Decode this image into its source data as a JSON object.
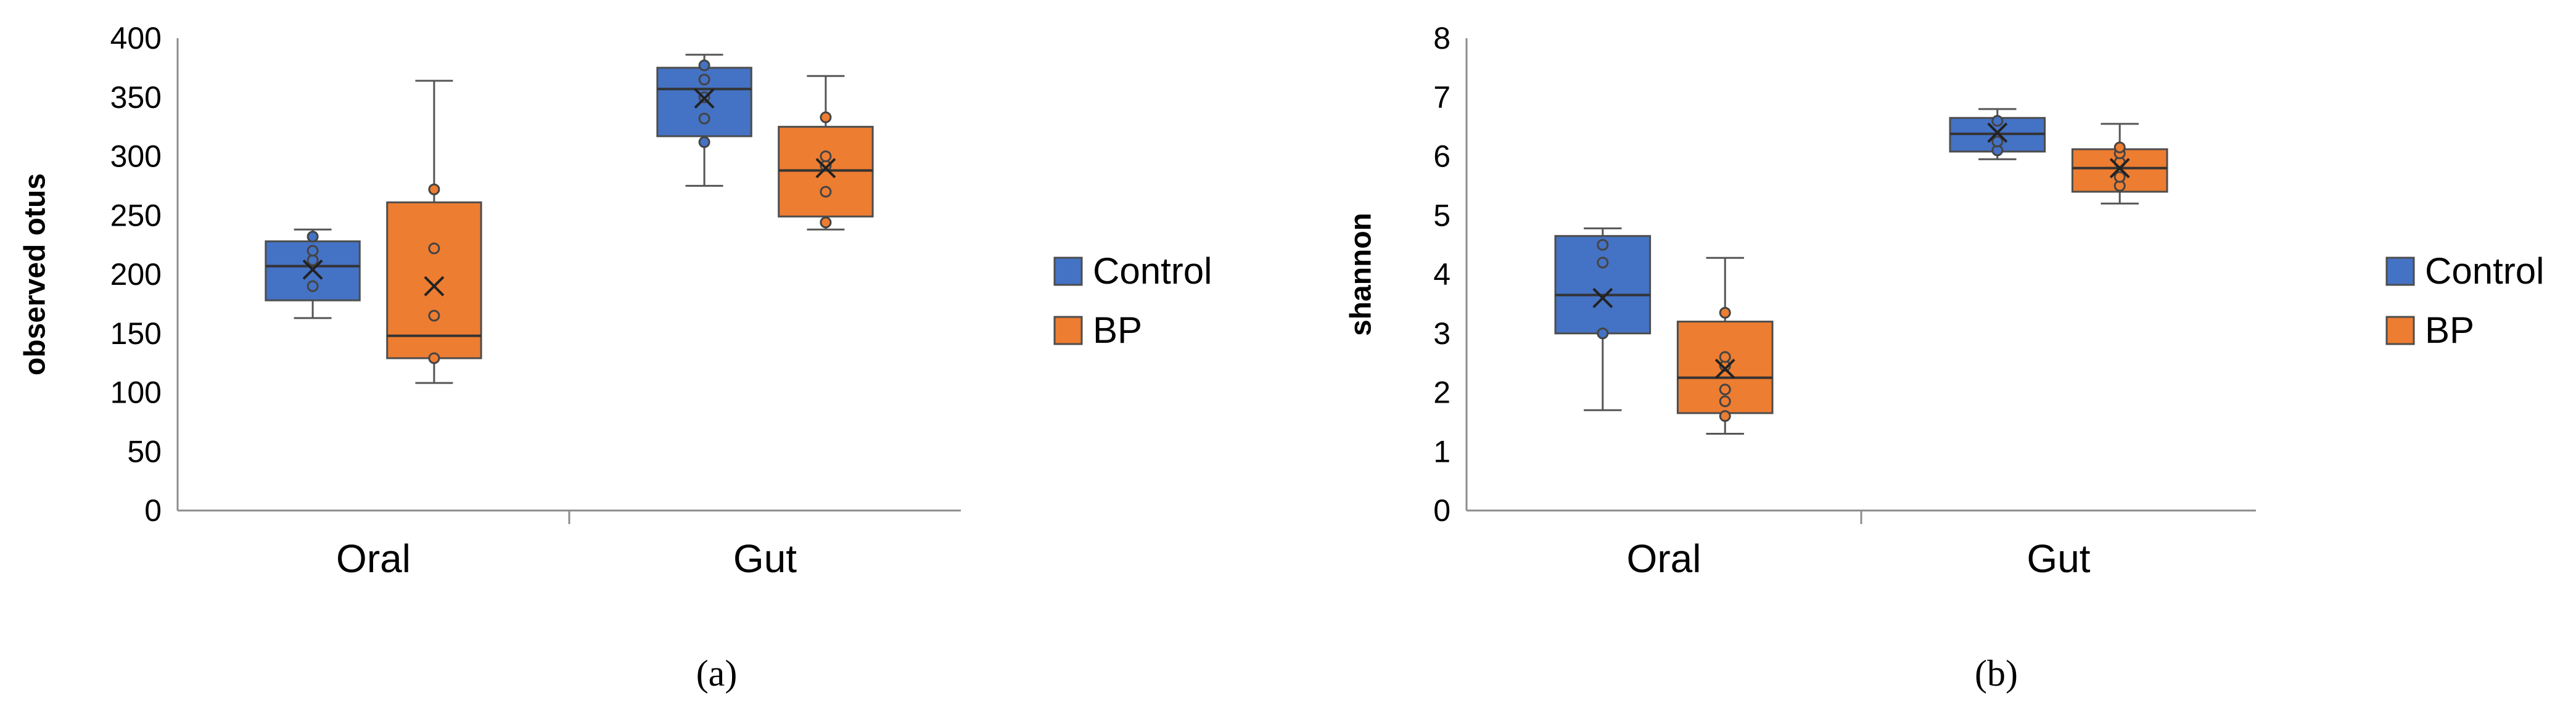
{
  "chart_data": [
    {
      "type": "box",
      "caption": "(a)",
      "ylabel": "observed otus",
      "xlabel": "",
      "ylim": [
        0,
        400
      ],
      "yticks": [
        0,
        50,
        100,
        150,
        200,
        250,
        300,
        350,
        400
      ],
      "categories": [
        "Oral",
        "Gut"
      ],
      "legend": [
        {
          "name": "Control"
        },
        {
          "name": "BP"
        }
      ],
      "series": [
        {
          "name": "Control",
          "color": "#4472C4",
          "boxes": [
            {
              "category": "Oral",
              "min": 163,
              "q1": 178,
              "median": 207,
              "q3": 228,
              "max": 238,
              "mean": 204,
              "points": [
                190,
                212,
                220,
                232
              ]
            },
            {
              "category": "Gut",
              "min": 275,
              "q1": 317,
              "median": 357,
              "q3": 375,
              "max": 386,
              "mean": 349,
              "points": [
                312,
                332,
                350,
                365,
                377
              ]
            }
          ]
        },
        {
          "name": "BP",
          "color": "#ED7D31",
          "boxes": [
            {
              "category": "Oral",
              "min": 108,
              "q1": 129,
              "median": 148,
              "q3": 261,
              "max": 364,
              "mean": 190,
              "points": [
                129,
                165,
                222,
                272
              ]
            },
            {
              "category": "Gut",
              "min": 238,
              "q1": 249,
              "median": 288,
              "q3": 325,
              "max": 368,
              "mean": 290,
              "points": [
                244,
                270,
                292,
                300,
                333
              ]
            }
          ]
        }
      ]
    },
    {
      "type": "box",
      "caption": "(b)",
      "ylabel": "shannon",
      "xlabel": "",
      "ylim": [
        0,
        8
      ],
      "yticks": [
        0,
        1,
        2,
        3,
        4,
        5,
        6,
        7,
        8
      ],
      "categories": [
        "Oral",
        "Gut"
      ],
      "legend": [
        {
          "name": "Control"
        },
        {
          "name": "BP"
        }
      ],
      "series": [
        {
          "name": "Control",
          "color": "#4472C4",
          "boxes": [
            {
              "category": "Oral",
              "min": 1.7,
              "q1": 3.0,
              "median": 3.65,
              "q3": 4.65,
              "max": 4.78,
              "mean": 3.6,
              "points": [
                3.0,
                4.2,
                4.5
              ]
            },
            {
              "category": "Gut",
              "min": 5.95,
              "q1": 6.08,
              "median": 6.38,
              "q3": 6.65,
              "max": 6.8,
              "mean": 6.4,
              "points": [
                6.1,
                6.25,
                6.6
              ]
            }
          ]
        },
        {
          "name": "BP",
          "color": "#ED7D31",
          "boxes": [
            {
              "category": "Oral",
              "min": 1.3,
              "q1": 1.65,
              "median": 2.25,
              "q3": 3.2,
              "max": 4.28,
              "mean": 2.4,
              "points": [
                1.6,
                1.85,
                2.05,
                2.45,
                2.6,
                3.35
              ]
            },
            {
              "category": "Gut",
              "min": 5.2,
              "q1": 5.4,
              "median": 5.8,
              "q3": 6.12,
              "max": 6.55,
              "mean": 5.8,
              "points": [
                5.5,
                5.65,
                5.9,
                6.05,
                6.15
              ]
            }
          ]
        }
      ]
    }
  ]
}
